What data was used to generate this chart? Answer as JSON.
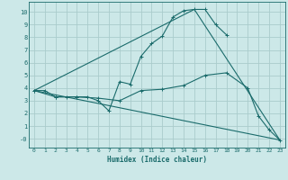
{
  "bg_color": "#cce8e8",
  "grid_color": "#aacccc",
  "line_color": "#1a6b6b",
  "xlabel": "Humidex (Indice chaleur)",
  "xlim": [
    -0.5,
    23.5
  ],
  "ylim": [
    -0.7,
    10.8
  ],
  "yticks": [
    0,
    1,
    2,
    3,
    4,
    5,
    6,
    7,
    8,
    9,
    10
  ],
  "xticks": [
    0,
    1,
    2,
    3,
    4,
    5,
    6,
    7,
    8,
    9,
    10,
    11,
    12,
    13,
    14,
    15,
    16,
    17,
    18,
    19,
    20,
    21,
    22,
    23
  ],
  "line1_x": [
    0,
    1,
    2,
    3,
    4,
    5,
    6,
    7,
    8,
    9,
    10,
    11,
    12,
    13,
    14,
    15,
    16,
    17,
    18
  ],
  "line1_y": [
    3.8,
    3.8,
    3.3,
    3.3,
    3.3,
    3.3,
    3.0,
    2.2,
    4.5,
    4.3,
    6.5,
    7.5,
    8.1,
    9.6,
    10.1,
    10.2,
    10.2,
    9.0,
    8.2
  ],
  "line2_x": [
    0,
    2,
    4,
    6,
    8,
    10,
    12,
    14,
    16,
    18,
    20,
    21,
    22,
    23
  ],
  "line2_y": [
    3.8,
    3.3,
    3.3,
    3.2,
    3.0,
    3.8,
    3.9,
    4.2,
    5.0,
    5.2,
    4.0,
    1.8,
    0.7,
    -0.1
  ],
  "line3_x": [
    0,
    23
  ],
  "line3_y": [
    3.8,
    -0.1
  ],
  "line4_x": [
    0,
    15,
    23
  ],
  "line4_y": [
    3.8,
    10.2,
    -0.1
  ]
}
